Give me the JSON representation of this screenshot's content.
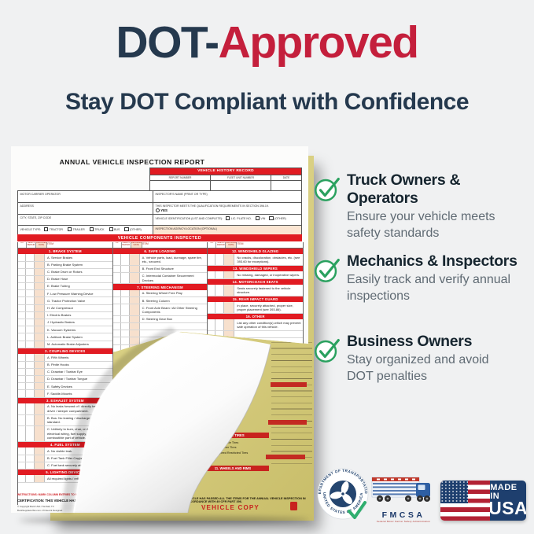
{
  "header": {
    "title_dark": "DOT-",
    "title_red": "Approved",
    "subtitle": "Stay DOT Compliant with Confidence"
  },
  "benefits": [
    {
      "title": "Truck Owners & Operators",
      "desc": "Ensure your vehicle meets\nsafety standards"
    },
    {
      "title": "Mechanics & Inspectors",
      "desc": "Easily track and verify annual\ninspections"
    },
    {
      "title": "Business Owners",
      "desc": "Stay organized and avoid\nDOT penalties"
    }
  ],
  "form": {
    "title": "ANNUAL VEHICLE INSPECTION REPORT",
    "history": {
      "title": "VEHICLE HISTORY RECORD",
      "columns": [
        "REPORT NUMBER",
        "FLEET UNIT NUMBER",
        "DATE"
      ]
    },
    "info": {
      "motor_carrier": "MOTOR CARRIER OPERATOR",
      "address": "ADDRESS",
      "city_state_zip": "CITY, STATE, ZIP CODE",
      "vehicle_type_label": "VEHICLE TYPE:",
      "vehicle_types": [
        "TRACTOR",
        "TRAILER",
        "TRUCK",
        "BUS",
        "(OTHER)"
      ],
      "inspector_name": "INSPECTOR'S NAME (PRINT OR TYPE)",
      "qualification": "THIS INSPECTOR MEETS THE QUALIFICATION REQUIREMENTS IN SECTION 396.19.",
      "yes_label": "YES",
      "vehicle_id": "VEHICLE IDENTIFICATION (LIST AND COMPLETE):",
      "id_options": [
        "LIC. PLATE NO.",
        "VIN",
        "(OTHER)"
      ],
      "agency": "INSPECTION AGENCY/LOCATION (OPTIONAL)"
    },
    "components_title": "VEHICLE COMPONENTS INSPECTED",
    "col_headers": [
      "OK",
      "NEEDS REPAIR",
      "REPAIRED DATE",
      "ITEM"
    ],
    "columns": [
      [
        {
          "title": "1. BRAKE SYSTEM",
          "items": [
            "A.  Service Brakes",
            "B.  Parking Brake System",
            "C.  Brake Drum or Rotors",
            "D.  Brake Hose",
            "E.  Brake Tubing",
            "F.  Low Pressure Warning Device",
            "G.  Tractor Protection Valve",
            "H.  Air Compressor",
            "I.  Electric Brakes",
            "J.  Hydraulic Brakes",
            "K.  Vacuum Systems",
            "L.  Antilock Brake System",
            "M.  Automatic Brake Adjusters"
          ]
        },
        {
          "title": "2. COUPLING DEVICES",
          "items": [
            "A.  Fifth Wheels",
            "B.  Pintle Hooks",
            "C.  Drawbar / Towbar Eye",
            "D.  Drawbar / Towbar Tongue",
            "E.  Safety Devices",
            "F.  Saddle-Mounts"
          ]
        },
        {
          "title": "3. EXHAUST SYSTEM",
          "items": [
            "A.  No leaks forward of / directly below the driver / sleeper compartment.",
            "B.  Bus: No leaking / discharge in violation of standard.",
            "C.  Unlikely to burn, char, or damage the electrical wiring, fuel supply, or any combustible part of vehicle."
          ]
        },
        {
          "title": "4. FUEL SYSTEM",
          "items": [
            "A.  No visible leak.",
            "B.  Fuel Tank Filler Cap(s)",
            "C.  Fuel tank securely attached."
          ]
        },
        {
          "title": "5. LIGHTING DEVICES",
          "items": [
            "All required lights / reflectors operable."
          ]
        }
      ],
      [
        {
          "title": "6. SAFE LOADING",
          "items": [
            "A.  Vehicle parts, load, dunnage, spare tire, etc., secured.",
            "B.  Front End Structure",
            "C.  Intermodal Container Securement Devices"
          ]
        },
        {
          "title": "7. STEERING MECHANISM",
          "items": [
            "A.  Steering Wheel Free Play",
            "B.  Steering Column",
            "C.  Front Axle Beam / All Other Steering Components",
            "D.  Steering Gear Box"
          ]
        }
      ],
      [
        {
          "title": "12. WINDSHIELD GLAZING",
          "items": [
            "No cracks, discoloration, obstacles, etc. (see 393.60 for exceptions)."
          ]
        },
        {
          "title": "13. WINDSHIELD WIPERS",
          "items": [
            "No missing, damaged, or inoperative wipers."
          ]
        },
        {
          "title": "14. MOTORCOACH SEATS",
          "items": [
            "Seats securely fastened to the vehicle structure."
          ]
        },
        {
          "title": "15. REAR IMPACT GUARD",
          "items": [
            "In place, securely attached, proper size, proper placement (see 393.86)."
          ]
        },
        {
          "title": "16. OTHER",
          "items": [
            "List any other condition(s) which may prevent safe operation of this vehicle."
          ]
        }
      ]
    ],
    "bottom": {
      "instructions": "INSTRUCTIONS: MARK COLUMN ENTRIES TO VERIFY INSPECTION:  X OK,  X NEEDS REPAIR,  NA IF ITEMS DO NOT APPLY  —  REPAIRED DATE",
      "certification": "CERTIFICATION: THIS VEHICLE HAS PASSED ALL THE ITEMS FOR THE ANNUAL VEHICLE INSPECTION IN ACCORDANCE WITH 49 CFR PART 396.",
      "copyright_1": "© Copyright Buck USA / Tomball, TX",
      "copyright_2": "BuckSuppliesUSA.com • Printed & Designed"
    },
    "yellow_copy": {
      "tires_title": "10. TIRES",
      "tires_items": "A.  Steer Axle Tires\nB.  All Other Tires\nC.  Speed Restricted Tires",
      "wheels_title": "11. WHEELS AND RIMS",
      "certification": "VEHICLE HAS PASSED ALL THE ITEMS FOR THE ANNUAL VEHICLE INSPECTION IN ACCORDANCE WITH 49 CFR PART 396.",
      "copy_label": "VEHICLE COPY"
    }
  },
  "badges": {
    "dot_seal_top": "DEPARTMENT OF TRANSPORTATION",
    "dot_seal_bottom": "UNITED STATES OF AMERICA",
    "fmcsa": "FMCSA",
    "fmcsa_sub": "Federal Motor Carrier Safety Administration",
    "made_in": "MADE IN",
    "usa": "USA"
  },
  "colors": {
    "navy": "#25394e",
    "headline_red": "#c41f3c",
    "form_red": "#e11b22",
    "check_green": "#2fae6e",
    "yellow_copy": "#d7cd80"
  }
}
